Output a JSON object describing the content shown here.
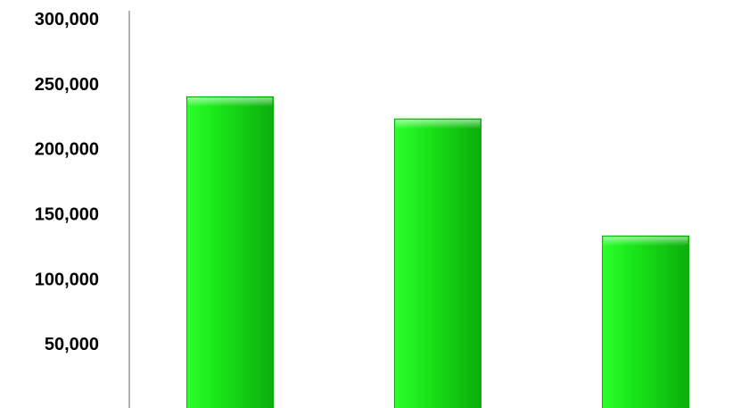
{
  "chart_data": {
    "type": "bar",
    "title": "",
    "xlabel": "",
    "ylabel": "",
    "categories": [
      "",
      "",
      ""
    ],
    "values": [
      240000,
      223000,
      133000
    ],
    "ylim": [
      0,
      300000
    ],
    "y_ticks": [
      50000,
      100000,
      150000,
      200000,
      250000,
      300000
    ],
    "y_tick_labels": [
      "50,000",
      "100,000",
      "150,000",
      "200,000",
      "250,000",
      "300,000"
    ],
    "bar_color": "#19e619",
    "bar_color_light": "#2cff2c",
    "bar_color_dark": "#0cae0c",
    "axis_color": "#9a9a9a",
    "grid": false,
    "legend": "none"
  }
}
